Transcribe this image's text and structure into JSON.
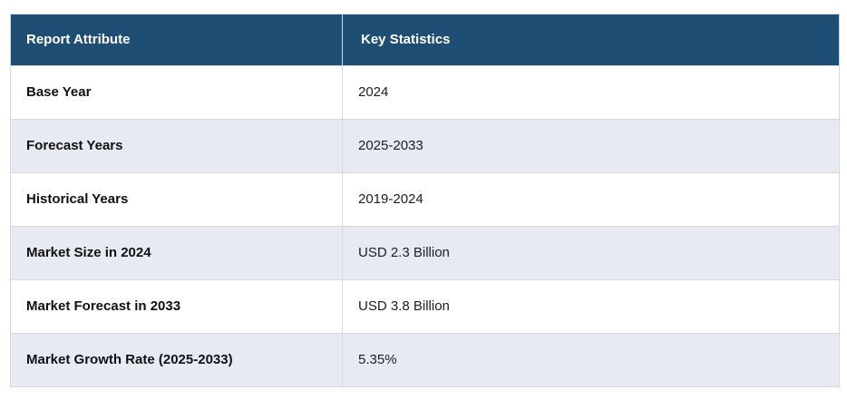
{
  "table": {
    "columns": [
      {
        "label": "Report Attribute"
      },
      {
        "label": "Key Statistics"
      }
    ],
    "rows": [
      {
        "attribute": "Base Year",
        "value": "2024"
      },
      {
        "attribute": "Forecast Years",
        "value": "2025-2033"
      },
      {
        "attribute": "Historical Years",
        "value": "2019-2024"
      },
      {
        "attribute": "Market Size in 2024",
        "value": "USD 2.3 Billion"
      },
      {
        "attribute": "Market Forecast in 2033",
        "value": "USD 3.8 Billion"
      },
      {
        "attribute": "Market Growth Rate (2025-2033)",
        "value": "5.35%"
      }
    ]
  },
  "colors": {
    "header_background": "#1f4e74",
    "header_text": "#ffffff",
    "row_alt_background": "#e8eaf3",
    "row_background": "#ffffff",
    "border": "#d8d8d8",
    "body_text": "#1d1d1d"
  },
  "chart_data": {
    "type": "table",
    "title": "Report Key Statistics",
    "columns": [
      "Report Attribute",
      "Key Statistics"
    ],
    "rows": [
      [
        "Base Year",
        "2024"
      ],
      [
        "Forecast Years",
        "2025-2033"
      ],
      [
        "Historical Years",
        "2019-2024"
      ],
      [
        "Market Size in 2024",
        "USD 2.3 Billion"
      ],
      [
        "Market Forecast in 2033",
        "USD 3.8 Billion"
      ],
      [
        "Market Growth Rate (2025-2033)",
        "5.35%"
      ]
    ],
    "layout": {
      "alternating_row_shading": true,
      "header_style": "dark-navy, bold white text",
      "grid": true
    }
  }
}
